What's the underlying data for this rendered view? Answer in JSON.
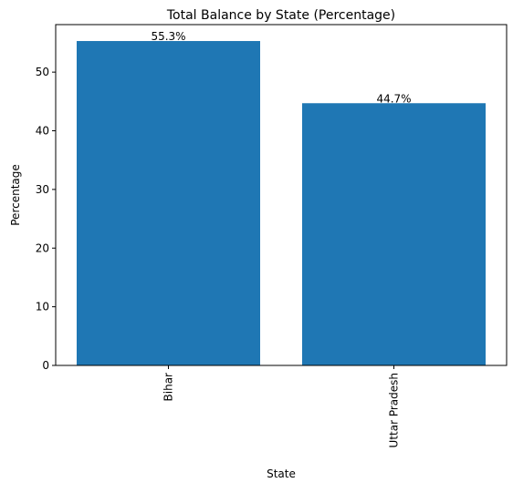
{
  "chart_data": {
    "type": "bar",
    "title": "Total Balance by State (Percentage)",
    "xlabel": "State",
    "ylabel": "Percentage",
    "categories": [
      "Bihar",
      "Uttar Pradesh"
    ],
    "values": [
      55.3,
      44.7
    ],
    "data_labels": [
      "55.3%",
      "44.7%"
    ],
    "yticks": [
      0,
      10,
      20,
      30,
      40,
      50
    ],
    "ylim": [
      0,
      58.1
    ],
    "bar_color": "#1f77b4",
    "grid": false,
    "legend": "none"
  }
}
